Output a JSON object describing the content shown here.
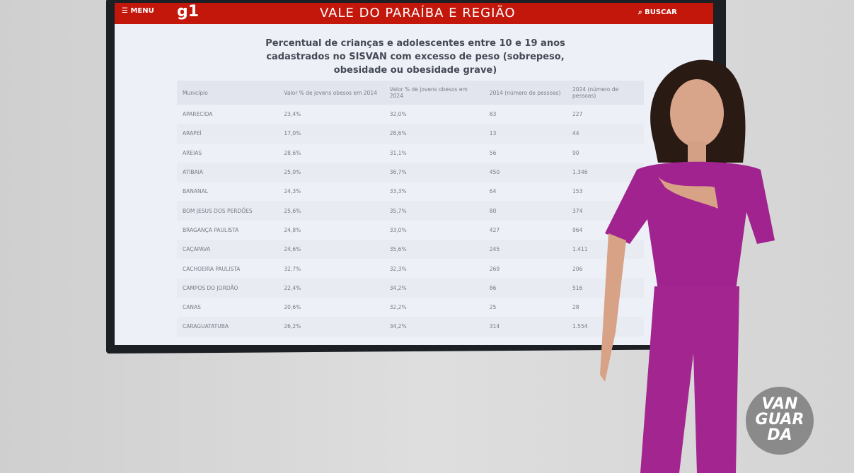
{
  "header": {
    "menu": "MENU",
    "logo": "g1",
    "region": "VALE DO PARAÍBA E REGIÃO",
    "search": "BUSCAR"
  },
  "table": {
    "title": "Percentual de crianças e adolescentes entre 10 e 19 anos cadastrados no SISVAN com excesso de peso (sobrepeso, obesidade ou obesidade grave)",
    "columns": [
      "Município",
      "Valor % de jovens obesos em 2014",
      "Valor % de jovens obesos em 2024",
      "2014 (número de pessoas)",
      "2024 (número de pessoas)"
    ],
    "rows": [
      [
        "APARECIDA",
        "23,4%",
        "32,0%",
        "83",
        "227"
      ],
      [
        "ARAPEÍ",
        "17,0%",
        "28,6%",
        "13",
        "44"
      ],
      [
        "AREIAS",
        "28,6%",
        "31,1%",
        "56",
        "90"
      ],
      [
        "ATIBAIA",
        "25,0%",
        "36,7%",
        "450",
        "1.346"
      ],
      [
        "BANANAL",
        "24,3%",
        "33,3%",
        "64",
        "153"
      ],
      [
        "BOM JESUS DOS PERDÕES",
        "25,6%",
        "35,7%",
        "80",
        "374"
      ],
      [
        "BRAGANÇA PAULISTA",
        "24,8%",
        "33,0%",
        "427",
        "964"
      ],
      [
        "CAÇAPAVA",
        "24,6%",
        "35,6%",
        "245",
        "1.411"
      ],
      [
        "CACHOEIRA PAULISTA",
        "32,7%",
        "32,3%",
        "269",
        "206"
      ],
      [
        "CAMPOS DO JORDÃO",
        "22,4%",
        "34,2%",
        "86",
        "516"
      ],
      [
        "CANAS",
        "20,6%",
        "32,2%",
        "25",
        "28"
      ],
      [
        "CARAGUATATUBA",
        "26,2%",
        "34,2%",
        "314",
        "1.554"
      ]
    ]
  },
  "brand": {
    "lines": [
      "VAN",
      "GUAR",
      "DA"
    ]
  }
}
